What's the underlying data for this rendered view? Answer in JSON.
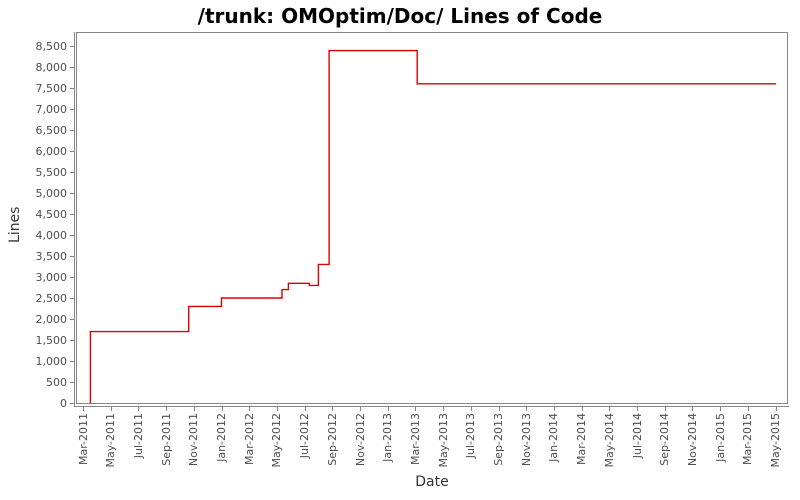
{
  "title": "/trunk: OMOptim/Doc/ Lines of Code",
  "colors": {
    "line": "#e10000",
    "axis": "#858585",
    "tick_text": "#4d4d4d",
    "axis_title_text": "#333333",
    "title_text": "#000000",
    "background": "#ffffff"
  },
  "chart_data": {
    "type": "line",
    "line_style": "step-post",
    "title": "/trunk: OMOptim/Doc/ Lines of Code",
    "xlabel": "Date",
    "ylabel": "Lines",
    "grid": false,
    "legend": "none",
    "ylim": [
      0,
      8790
    ],
    "y_tick_step": 500,
    "y_tick_labels": [
      "0",
      "500",
      "1,000",
      "1,500",
      "2,000",
      "2,500",
      "3,000",
      "3,500",
      "4,000",
      "4,500",
      "5,000",
      "5,500",
      "6,000",
      "6,500",
      "7,000",
      "7,500",
      "8,000",
      "8,500"
    ],
    "x_tick_interval_months": 2,
    "x_tick_labels": [
      "Mar-2011",
      "May-2011",
      "Jul-2011",
      "Sep-2011",
      "Nov-2011",
      "Jan-2012",
      "Mar-2012",
      "May-2012",
      "Jul-2012",
      "Sep-2012",
      "Nov-2012",
      "Jan-2013",
      "Mar-2013",
      "May-2013",
      "Jul-2013",
      "Sep-2013",
      "Nov-2013",
      "Jan-2014",
      "Mar-2014",
      "May-2014",
      "Jul-2014",
      "Sep-2014",
      "Nov-2014",
      "Jan-2015",
      "Mar-2015",
      "May-2015"
    ],
    "series": [
      {
        "name": "Lines of Code",
        "color": "#e10000",
        "start": {
          "date": "2011-03-17",
          "lines": 0
        },
        "steps": [
          {
            "date": "2011-03-17",
            "lines": 1700
          },
          {
            "date": "2011-10-20",
            "lines": 2300
          },
          {
            "date": "2012-01-01",
            "lines": 2500
          },
          {
            "date": "2012-05-12",
            "lines": 2700
          },
          {
            "date": "2012-05-26",
            "lines": 2850
          },
          {
            "date": "2012-07-11",
            "lines": 2800
          },
          {
            "date": "2012-08-01",
            "lines": 3300
          },
          {
            "date": "2012-08-24",
            "lines": 8390
          },
          {
            "date": "2013-03-05",
            "lines": 7600
          }
        ],
        "end_date": "2015-05-02"
      }
    ]
  }
}
